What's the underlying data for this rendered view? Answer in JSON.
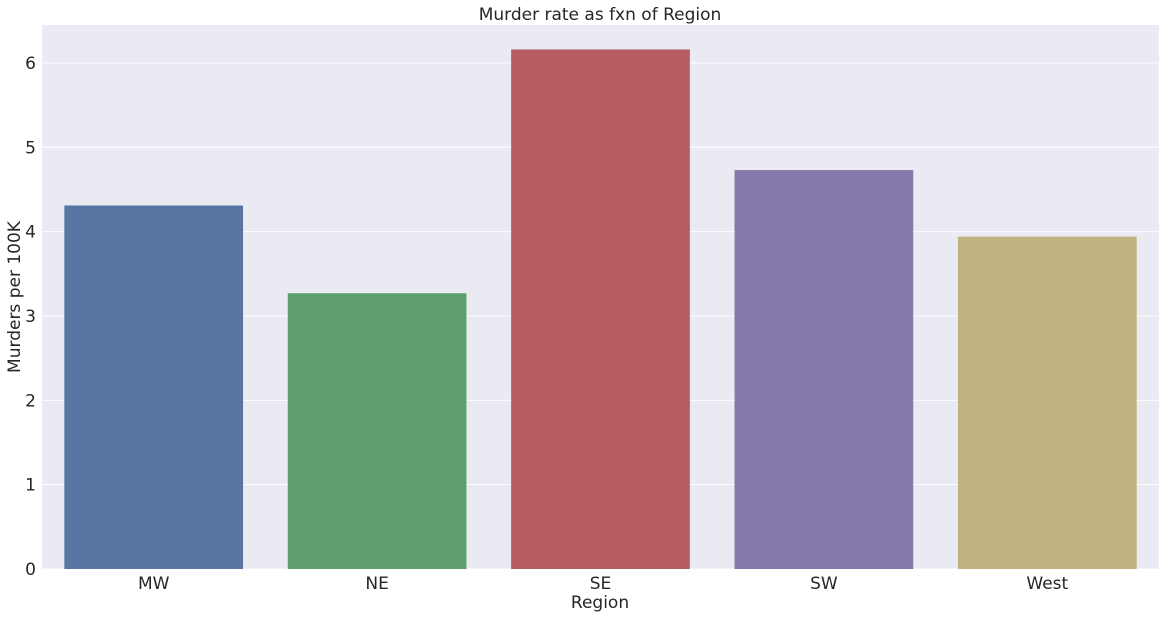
{
  "chart_data": {
    "type": "bar",
    "title": "Murder rate as fxn of Region",
    "xlabel": "Region",
    "ylabel": "Murders per 100K",
    "categories": [
      "MW",
      "NE",
      "SE",
      "SW",
      "West"
    ],
    "values": [
      4.31,
      3.27,
      6.16,
      4.73,
      3.94
    ],
    "colors": [
      "#5875a4",
      "#5f9e6e",
      "#b55d60",
      "#857aab",
      "#c1b37f"
    ],
    "yticks": [
      "0",
      "1",
      "2",
      "3",
      "4",
      "5",
      "6"
    ],
    "ylim": [
      0,
      6.45
    ],
    "grid": true,
    "background_color": "#eaeaf2",
    "legend": "none"
  }
}
